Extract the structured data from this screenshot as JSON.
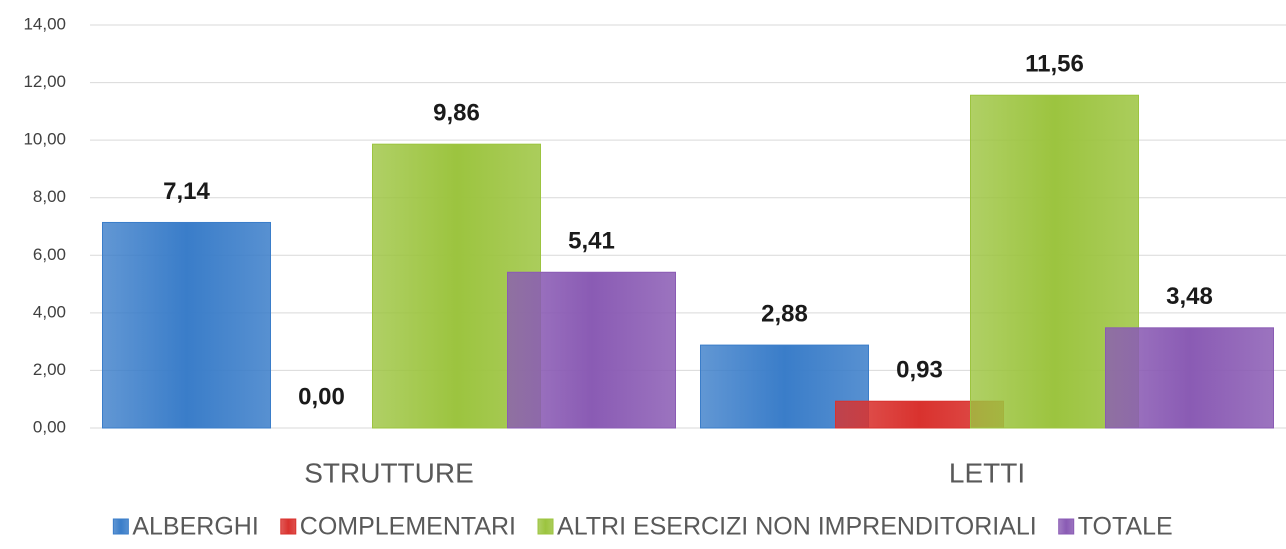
{
  "chart_data": {
    "type": "bar",
    "categories": [
      "STRUTTURE",
      "LETTI"
    ],
    "series": [
      {
        "name": "ALBERGHI",
        "color": "#3a7dc9",
        "values": [
          7.14,
          2.88
        ],
        "value_labels": [
          "7,14",
          "2,88"
        ]
      },
      {
        "name": "COMPLEMENTARI",
        "color": "#d9322e",
        "values": [
          0.0,
          0.93
        ],
        "value_labels": [
          "0,00",
          "0,93"
        ]
      },
      {
        "name": "ALTRI ESERCIZI NON IMPRENDITORIALI",
        "color": "#9cc43f",
        "values": [
          9.86,
          11.56
        ],
        "value_labels": [
          "9,86",
          "11,56"
        ]
      },
      {
        "name": "TOTALE",
        "color": "#8a5bb4",
        "values": [
          5.41,
          3.48
        ],
        "value_labels": [
          "5,41",
          "3,48"
        ]
      }
    ],
    "ylim": [
      0,
      14
    ],
    "yticks": [
      {
        "value": 0,
        "label": "0,00"
      },
      {
        "value": 2,
        "label": "2,00"
      },
      {
        "value": 4,
        "label": "4,00"
      },
      {
        "value": 6,
        "label": "6,00"
      },
      {
        "value": 8,
        "label": "8,00"
      },
      {
        "value": 10,
        "label": "10,00"
      },
      {
        "value": 12,
        "label": "12,00"
      },
      {
        "value": 14,
        "label": "14,00"
      }
    ],
    "grid": true,
    "legend": "bottom"
  }
}
